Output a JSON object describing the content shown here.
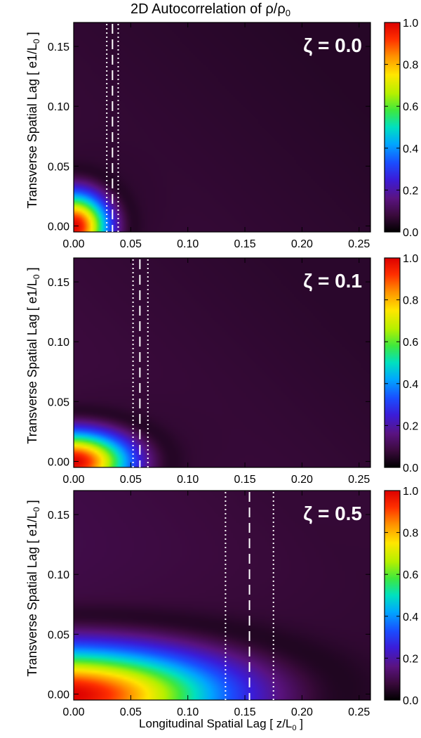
{
  "chart_data": {
    "type": "heatmap",
    "title_main": "2D Autocorrelation of ρ/ρ",
    "title_sub": "0",
    "xlabel_main": "Longitudinal Spatial Lag   [ z/L",
    "xlabel_sub": "0",
    "xlabel_end": " ]",
    "ylabel_main": "Transverse Spatial Lag   [ e1/L",
    "ylabel_sub": "0",
    "ylabel_end": " ]",
    "xlim": [
      0.0,
      0.26
    ],
    "ylim": [
      -0.005,
      0.17
    ],
    "x_ticks": [
      0.0,
      0.05,
      0.1,
      0.15,
      0.2,
      0.25
    ],
    "x_tick_labels": [
      "0.00",
      "0.05",
      "0.10",
      "0.15",
      "0.20",
      "0.25"
    ],
    "y_ticks": [
      0.0,
      0.05,
      0.1,
      0.15
    ],
    "y_tick_labels": [
      "0.00",
      "0.05",
      "0.10",
      "0.15"
    ],
    "colorbar": {
      "range": [
        0.0,
        1.0
      ],
      "ticks": [
        0.0,
        0.2,
        0.4,
        0.6,
        0.8,
        1.0
      ],
      "tick_labels": [
        "0.0",
        "0.2",
        "0.4",
        "0.6",
        "0.8",
        "1.0"
      ],
      "colormap": "rainbow (black-purple-blue-green-yellow-red)"
    },
    "panels": [
      {
        "label": "ζ = 0.0",
        "dashed_line_x": 0.034,
        "dotted_lines_x": [
          0.029,
          0.039
        ],
        "correlation_length_x": 0.022,
        "correlation_length_y": 0.02,
        "background_level": 0.08
      },
      {
        "label": "ζ = 0.1",
        "dashed_line_x": 0.058,
        "dotted_lines_x": [
          0.052,
          0.065
        ],
        "correlation_length_x": 0.036,
        "correlation_length_y": 0.018,
        "background_level": 0.09
      },
      {
        "label": "ζ = 0.5",
        "dashed_line_x": 0.154,
        "dotted_lines_x": [
          0.133,
          0.175
        ],
        "correlation_length_x": 0.1,
        "correlation_length_y": 0.028,
        "background_level": 0.11
      }
    ]
  },
  "colors": {
    "background": "#ffffff",
    "label_text": "#ffffff",
    "marker_lines": "#ffffff",
    "axis": "#000000"
  }
}
